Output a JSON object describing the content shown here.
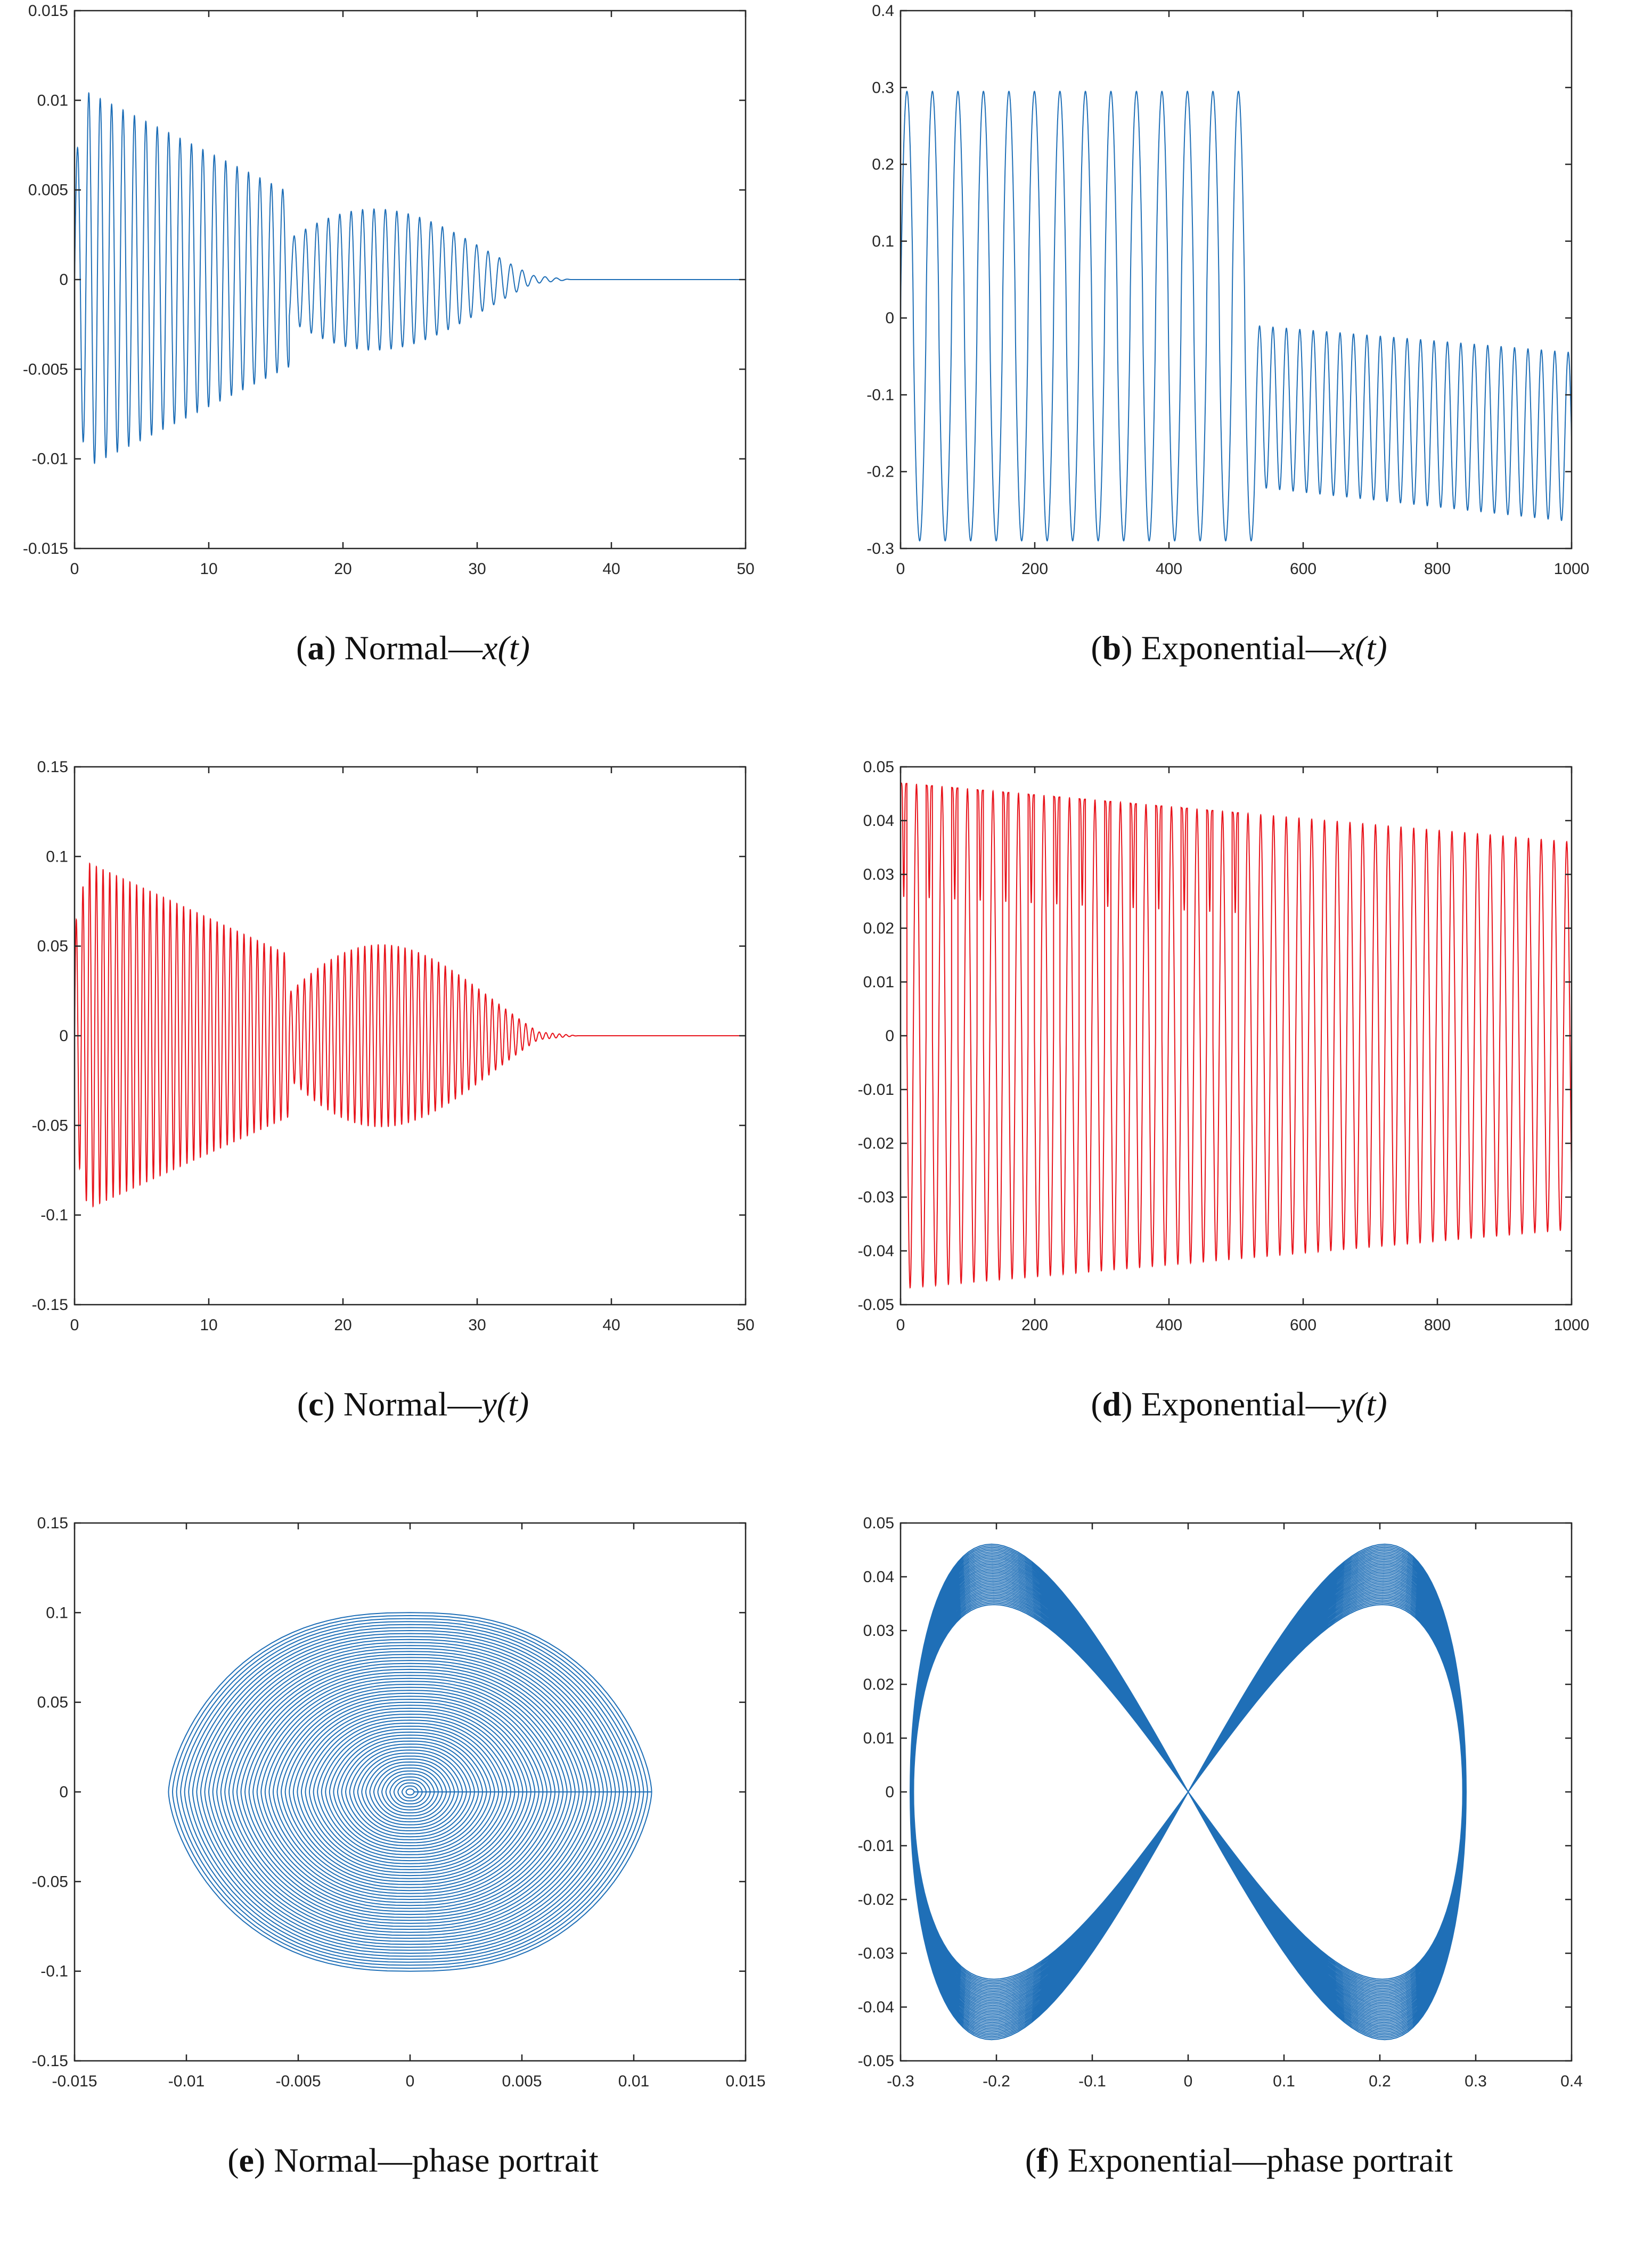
{
  "figure_colors": {
    "blue": "#1f6fb7",
    "red": "#e8131b"
  },
  "chart_data": [
    {
      "id": "a",
      "type": "line",
      "caption": {
        "letter": "a",
        "name": "Normal",
        "dash": "—",
        "var": "x",
        "arg": "(t)"
      },
      "color": "blue",
      "xlim": [
        0,
        50
      ],
      "ylim": [
        -0.015,
        0.015
      ],
      "xticks": [
        "0",
        "10",
        "20",
        "30",
        "40",
        "50"
      ],
      "xtick_values": [
        0,
        10,
        20,
        30,
        40,
        50
      ],
      "yticks": [
        "0.015",
        "0.01",
        "0.005",
        "0",
        "-0.005",
        "-0.01",
        "-0.015"
      ],
      "ytick_values": [
        0.015,
        0.01,
        0.005,
        0,
        -0.005,
        -0.01,
        -0.015
      ],
      "signal": {
        "kind": "normal",
        "peak": 0.0108,
        "period": 0.85,
        "dip_at": 16,
        "bump_at": 22,
        "bump": 0.0036,
        "end": 37
      }
    },
    {
      "id": "b",
      "type": "line",
      "caption": {
        "letter": "b",
        "name": "Exponential",
        "dash": "—",
        "var": "x",
        "arg": "(t)"
      },
      "color": "blue",
      "xlim": [
        0,
        1000
      ],
      "ylim": [
        -0.3,
        0.4
      ],
      "xticks": [
        "0",
        "200",
        "400",
        "600",
        "800",
        "1000"
      ],
      "xtick_values": [
        0,
        200,
        400,
        600,
        800,
        1000
      ],
      "yticks": [
        "0.4",
        "0.3",
        "0.2",
        "0.1",
        "0",
        "-0.1",
        "-0.2",
        "-0.3"
      ],
      "ytick_values": [
        0.4,
        0.3,
        0.2,
        0.1,
        0,
        -0.1,
        -0.2,
        -0.3
      ],
      "signal": {
        "kind": "exp_x",
        "period1": 38,
        "switch_at": 530,
        "high1": 0.295,
        "low1": -0.29,
        "period2": 20
      }
    },
    {
      "id": "c",
      "type": "line",
      "caption": {
        "letter": "c",
        "name": "Normal",
        "dash": "—",
        "var": "y",
        "arg": "(t)"
      },
      "color": "red",
      "xlim": [
        0,
        50
      ],
      "ylim": [
        -0.15,
        0.15
      ],
      "xticks": [
        "0",
        "10",
        "20",
        "30",
        "40",
        "50"
      ],
      "xtick_values": [
        0,
        10,
        20,
        30,
        40,
        50
      ],
      "yticks": [
        "0.15",
        "0.1",
        "0.05",
        "0",
        "-0.05",
        "-0.1",
        "-0.15"
      ],
      "ytick_values": [
        0.15,
        0.1,
        0.05,
        0,
        -0.05,
        -0.1,
        -0.15
      ],
      "signal": {
        "kind": "normal",
        "peak": 0.1,
        "period": 0.5,
        "dip_at": 16,
        "bump_at": 22,
        "bump": 0.052,
        "end": 37.5
      }
    },
    {
      "id": "d",
      "type": "line",
      "caption": {
        "letter": "d",
        "name": "Exponential",
        "dash": "—",
        "var": "y",
        "arg": "(t)"
      },
      "color": "red",
      "xlim": [
        0,
        1000
      ],
      "ylim": [
        -0.05,
        0.05
      ],
      "xticks": [
        "0",
        "200",
        "400",
        "600",
        "800",
        "1000"
      ],
      "xtick_values": [
        0,
        200,
        400,
        600,
        800,
        1000
      ],
      "yticks": [
        "0.05",
        "0.04",
        "0.03",
        "0.02",
        "0.01",
        "0",
        "-0.01",
        "-0.02",
        "-0.03",
        "-0.04",
        "-0.05"
      ],
      "ytick_values": [
        0.05,
        0.04,
        0.03,
        0.02,
        0.01,
        0,
        -0.01,
        -0.02,
        -0.03,
        -0.04,
        -0.05
      ],
      "signal": {
        "kind": "exp_y",
        "period1": 19,
        "switch_at": 530,
        "peak_start": 0.047,
        "peak_end": 0.036,
        "period2": 20
      }
    },
    {
      "id": "e",
      "type": "phase",
      "caption": {
        "letter": "e",
        "name": "Normal",
        "dash": "—",
        "var": "",
        "arg": "phase portrait"
      },
      "color": "blue",
      "xlim": [
        -0.015,
        0.015
      ],
      "ylim": [
        -0.15,
        0.15
      ],
      "xticks": [
        "-0.015",
        "-0.01",
        "-0.005",
        "0",
        "0.005",
        "0.01",
        "0.015"
      ],
      "xtick_values": [
        -0.015,
        -0.01,
        -0.005,
        0,
        0.005,
        0.01,
        0.015
      ],
      "yticks": [
        "0.15",
        "0.1",
        "0.05",
        "0",
        "-0.05",
        "-0.1",
        "-0.15"
      ],
      "ytick_values": [
        0.15,
        0.1,
        0.05,
        0,
        -0.05,
        -0.1,
        -0.15
      ],
      "signal": {
        "kind": "phase_normal",
        "max_x": 0.0108,
        "max_y": 0.1
      }
    },
    {
      "id": "f",
      "type": "phase",
      "caption": {
        "letter": "f",
        "name": "Exponential",
        "dash": "—",
        "var": "",
        "arg": "phase portrait"
      },
      "color": "blue",
      "xlim": [
        -0.3,
        0.4
      ],
      "ylim": [
        -0.05,
        0.05
      ],
      "xticks": [
        "-0.3",
        "-0.2",
        "-0.1",
        "0",
        "0.1",
        "0.2",
        "0.3",
        "0.4"
      ],
      "xtick_values": [
        -0.3,
        -0.2,
        -0.1,
        0,
        0.1,
        0.2,
        0.3,
        0.4
      ],
      "yticks": [
        "0.05",
        "0.04",
        "0.03",
        "0.02",
        "0.01",
        "0",
        "-0.01",
        "-0.02",
        "-0.03",
        "-0.04",
        "-0.05"
      ],
      "ytick_values": [
        0.05,
        0.04,
        0.03,
        0.02,
        0.01,
        0,
        -0.01,
        -0.02,
        -0.03,
        -0.04,
        -0.05
      ],
      "signal": {
        "kind": "phase_exp",
        "lobe_x": 0.29,
        "lobe_y": 0.047
      }
    }
  ]
}
